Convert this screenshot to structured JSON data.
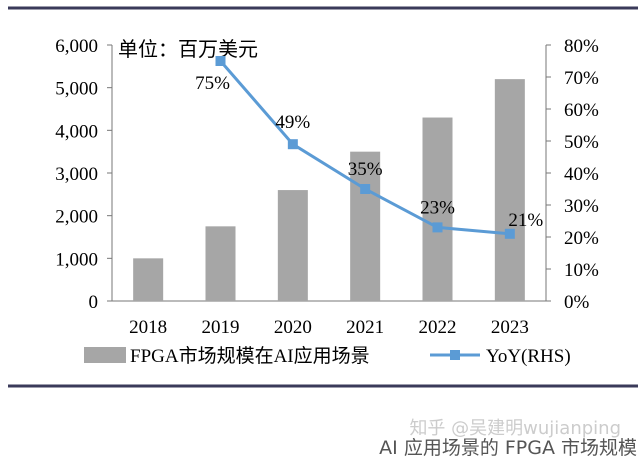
{
  "chart_data": {
    "type": "bar+line",
    "unit_note": "单位：百万美元",
    "categories": [
      "2018",
      "2019",
      "2020",
      "2021",
      "2022",
      "2023"
    ],
    "series": [
      {
        "name": "FPGA市场规模在AI应用场景",
        "type": "bar",
        "axis": "left",
        "color": "#a6a6a6",
        "values": [
          1000,
          1750,
          2600,
          3500,
          4300,
          5200
        ]
      },
      {
        "name": "YoY(RHS)",
        "type": "line",
        "axis": "right",
        "color": "#5b9bd5",
        "values": [
          75,
          49,
          35,
          23,
          21
        ],
        "x": [
          "2019",
          "2020",
          "2021",
          "2022",
          "2023"
        ],
        "labels": [
          "75%",
          "49%",
          "35%",
          "23%",
          "21%"
        ]
      }
    ],
    "left_axis": {
      "ylim": [
        0,
        6000
      ],
      "ticks": [
        "0",
        "1,000",
        "2,000",
        "3,000",
        "4,000",
        "5,000",
        "6,000"
      ]
    },
    "right_axis": {
      "ylim": [
        0,
        80
      ],
      "ticks": [
        "0%",
        "10%",
        "20%",
        "30%",
        "40%",
        "50%",
        "60%",
        "70%",
        "80%"
      ]
    },
    "legend_placement": "bottom",
    "grid": false
  },
  "caption": "AI 应用场景的 FPGA 市场规模",
  "watermark": "知乎 @吴建明wujianping"
}
